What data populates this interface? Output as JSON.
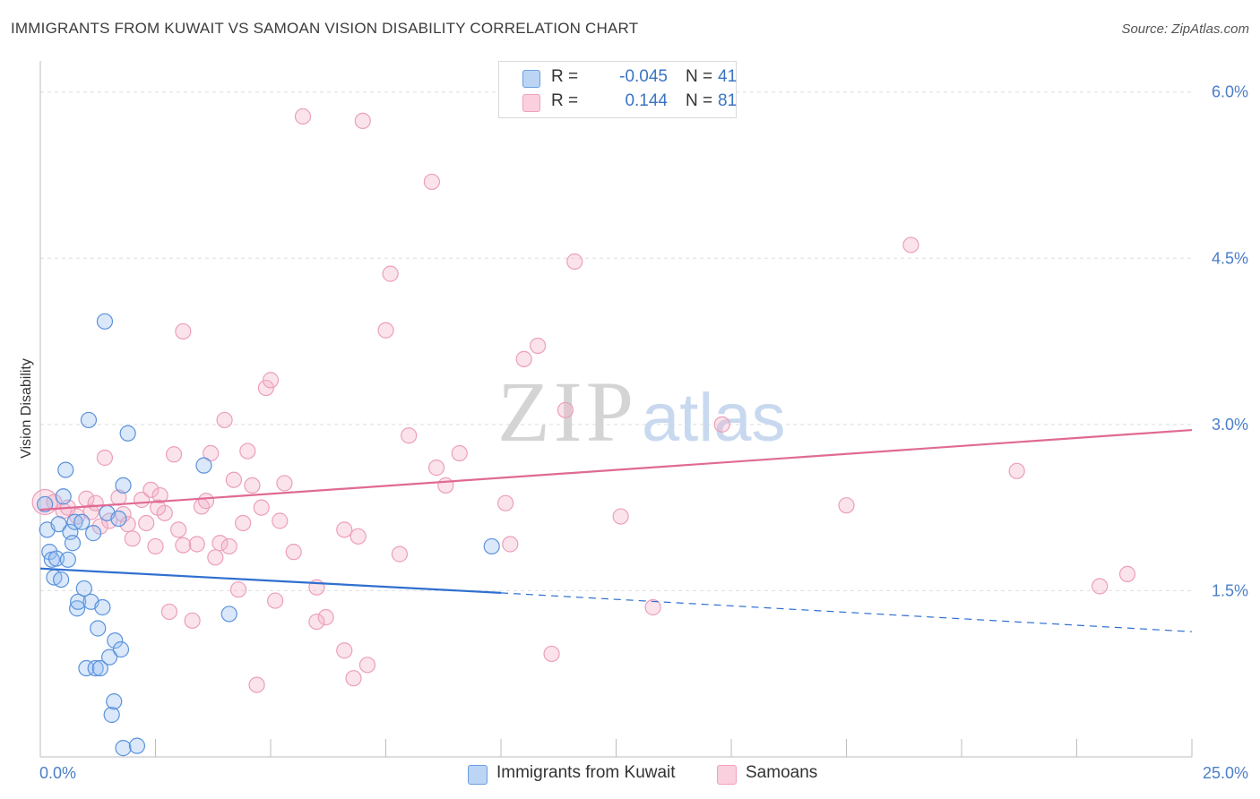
{
  "header": {
    "title": "IMMIGRANTS FROM KUWAIT VS SAMOAN VISION DISABILITY CORRELATION CHART",
    "source": "Source: ZipAtlas.com"
  },
  "watermark": {
    "zip": "ZIP",
    "atlas": "atlas"
  },
  "legend": {
    "r_label": "R =",
    "n_label": "N =",
    "rows": [
      {
        "r": "-0.045",
        "n": "41"
      },
      {
        "r": "0.144",
        "n": "81"
      }
    ]
  },
  "chart_data": {
    "type": "scatter",
    "title": "IMMIGRANTS FROM KUWAIT VS SAMOAN VISION DISABILITY CORRELATION CHART",
    "xlabel": "",
    "ylabel": "Vision Disability",
    "xlim": [
      0,
      25
    ],
    "ylim": [
      0,
      6.2
    ],
    "x_tick_labels": [
      "0.0%",
      "25.0%"
    ],
    "y_ticks": [
      1.5,
      3.0,
      4.5,
      6.0
    ],
    "y_tick_labels": [
      "1.5%",
      "3.0%",
      "4.5%",
      "6.0%"
    ],
    "grid": true,
    "legend_position": "top-center",
    "colors": {
      "kuwait": "#6a9fe0",
      "samoan": "#f0a0bd",
      "kuwait_line": "#2f6fcf",
      "samoan_line": "#e06a93"
    },
    "series": [
      {
        "name": "Immigrants from Kuwait",
        "trend": {
          "x0": 0,
          "y0": 1.7,
          "x1": 10,
          "y1": 1.48,
          "dashed_to_x": 25,
          "dashed_to_y": 1.13
        },
        "points": [
          [
            0.1,
            2.28
          ],
          [
            0.15,
            2.05
          ],
          [
            0.2,
            1.85
          ],
          [
            0.25,
            1.78
          ],
          [
            0.3,
            1.62
          ],
          [
            0.35,
            1.79
          ],
          [
            0.4,
            2.1
          ],
          [
            0.45,
            1.6
          ],
          [
            0.5,
            2.35
          ],
          [
            0.55,
            2.59
          ],
          [
            0.6,
            1.78
          ],
          [
            0.65,
            2.03
          ],
          [
            0.7,
            1.93
          ],
          [
            0.75,
            2.12
          ],
          [
            0.8,
            1.34
          ],
          [
            0.82,
            1.4
          ],
          [
            0.9,
            2.12
          ],
          [
            0.95,
            1.52
          ],
          [
            1.0,
            0.8
          ],
          [
            1.05,
            3.04
          ],
          [
            1.1,
            1.4
          ],
          [
            1.15,
            2.02
          ],
          [
            1.2,
            0.8
          ],
          [
            1.25,
            1.16
          ],
          [
            1.3,
            0.8
          ],
          [
            1.35,
            1.35
          ],
          [
            1.4,
            3.93
          ],
          [
            1.45,
            2.2
          ],
          [
            1.5,
            0.9
          ],
          [
            1.55,
            0.38
          ],
          [
            1.6,
            0.5
          ],
          [
            1.62,
            1.05
          ],
          [
            1.7,
            2.15
          ],
          [
            1.75,
            0.97
          ],
          [
            1.8,
            2.45
          ],
          [
            1.9,
            2.92
          ],
          [
            1.8,
            0.08
          ],
          [
            2.1,
            0.1
          ],
          [
            3.55,
            2.63
          ],
          [
            4.1,
            1.29
          ],
          [
            9.8,
            1.9
          ]
        ]
      },
      {
        "name": "Samoans",
        "trend": {
          "x0": 0,
          "y0": 2.23,
          "x1": 25,
          "y1": 2.95
        },
        "points": [
          [
            0.3,
            2.3
          ],
          [
            0.5,
            2.22
          ],
          [
            0.6,
            2.25
          ],
          [
            0.8,
            2.17
          ],
          [
            1.0,
            2.33
          ],
          [
            1.1,
            2.21
          ],
          [
            1.2,
            2.29
          ],
          [
            1.3,
            2.08
          ],
          [
            1.4,
            2.7
          ],
          [
            1.5,
            2.13
          ],
          [
            1.7,
            2.34
          ],
          [
            1.8,
            2.19
          ],
          [
            1.9,
            2.1
          ],
          [
            2.0,
            1.97
          ],
          [
            2.2,
            2.32
          ],
          [
            2.3,
            2.11
          ],
          [
            2.4,
            2.41
          ],
          [
            2.5,
            1.9
          ],
          [
            2.6,
            2.36
          ],
          [
            2.7,
            2.2
          ],
          [
            2.8,
            1.31
          ],
          [
            2.9,
            2.73
          ],
          [
            3.0,
            2.05
          ],
          [
            3.1,
            1.91
          ],
          [
            3.1,
            3.84
          ],
          [
            3.3,
            1.23
          ],
          [
            3.4,
            1.92
          ],
          [
            3.5,
            2.26
          ],
          [
            3.6,
            2.31
          ],
          [
            3.7,
            2.74
          ],
          [
            3.8,
            1.8
          ],
          [
            3.9,
            1.93
          ],
          [
            4.0,
            3.04
          ],
          [
            4.1,
            1.9
          ],
          [
            4.2,
            2.5
          ],
          [
            4.3,
            1.51
          ],
          [
            4.4,
            2.11
          ],
          [
            4.5,
            2.76
          ],
          [
            4.6,
            2.45
          ],
          [
            4.7,
            0.65
          ],
          [
            4.8,
            2.25
          ],
          [
            4.9,
            3.33
          ],
          [
            5.0,
            3.4
          ],
          [
            5.1,
            1.41
          ],
          [
            5.2,
            2.13
          ],
          [
            5.3,
            2.47
          ],
          [
            5.5,
            1.85
          ],
          [
            5.7,
            5.78
          ],
          [
            6.0,
            1.53
          ],
          [
            6.2,
            1.26
          ],
          [
            6.6,
            0.96
          ],
          [
            6.6,
            2.05
          ],
          [
            6.8,
            0.71
          ],
          [
            6.9,
            1.99
          ],
          [
            7.0,
            5.74
          ],
          [
            7.1,
            0.83
          ],
          [
            7.5,
            3.85
          ],
          [
            7.6,
            4.36
          ],
          [
            7.8,
            1.83
          ],
          [
            8.0,
            2.9
          ],
          [
            8.5,
            5.19
          ],
          [
            8.6,
            2.61
          ],
          [
            8.8,
            2.45
          ],
          [
            9.1,
            2.74
          ],
          [
            10.1,
            2.29
          ],
          [
            10.2,
            1.92
          ],
          [
            10.5,
            3.59
          ],
          [
            10.8,
            3.71
          ],
          [
            11.1,
            0.93
          ],
          [
            11.4,
            3.13
          ],
          [
            11.6,
            4.47
          ],
          [
            12.6,
            2.17
          ],
          [
            13.3,
            1.35
          ],
          [
            14.8,
            3.0
          ],
          [
            17.5,
            2.27
          ],
          [
            18.9,
            4.62
          ],
          [
            21.2,
            2.58
          ],
          [
            23.0,
            1.54
          ],
          [
            23.6,
            1.65
          ],
          [
            2.55,
            2.25
          ],
          [
            6.0,
            1.22
          ]
        ]
      }
    ]
  },
  "bottom_legend": [
    {
      "label": "Immigrants from Kuwait"
    },
    {
      "label": "Samoans"
    }
  ]
}
